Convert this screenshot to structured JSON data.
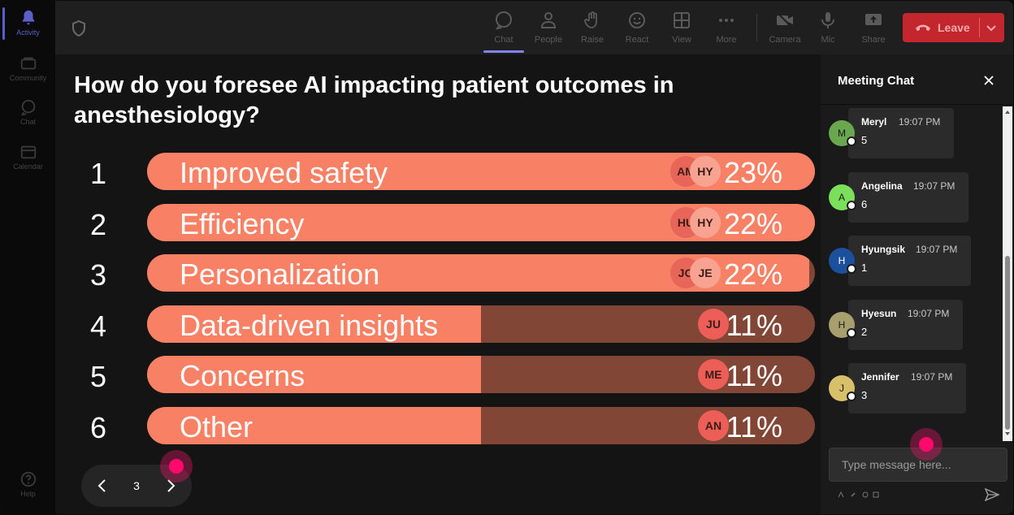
{
  "rail": {
    "items": [
      {
        "label": "Activity",
        "icon": "bell-icon"
      },
      {
        "label": "Community",
        "icon": "community-icon"
      },
      {
        "label": "Chat",
        "icon": "chat-icon"
      },
      {
        "label": "Calendar",
        "icon": "calendar-icon"
      }
    ],
    "help_label": "Help"
  },
  "toolbar": {
    "chat": "Chat",
    "people": "People",
    "raise": "Raise",
    "react": "React",
    "view": "View",
    "more": "More",
    "camera": "Camera",
    "mic": "Mic",
    "share": "Share",
    "leave": "Leave"
  },
  "poll": {
    "question": "How do you foresee AI impacting patient outcomes in anesthesiology?",
    "options": [
      {
        "num": "1",
        "label": "Improved safety",
        "pct": "23%",
        "fill": 1.0,
        "avatars": [
          "AM",
          "HY"
        ]
      },
      {
        "num": "2",
        "label": "Efficiency",
        "pct": "22%",
        "fill": 1.0,
        "avatars": [
          "HU",
          "HY"
        ]
      },
      {
        "num": "3",
        "label": "Personalization",
        "pct": "22%",
        "fill": 0.992,
        "avatars": [
          "JO",
          "JE"
        ]
      },
      {
        "num": "4",
        "label": "Data-driven insights",
        "pct": "11%",
        "fill": 0.5,
        "avatars": [
          "JU"
        ]
      },
      {
        "num": "5",
        "label": "Concerns",
        "pct": "11%",
        "fill": 0.5,
        "avatars": [
          "ME"
        ]
      },
      {
        "num": "6",
        "label": "Other",
        "pct": "11%",
        "fill": 0.5,
        "avatars": [
          "AN"
        ]
      }
    ],
    "page": "3"
  },
  "chat": {
    "title": "Meeting Chat",
    "messages": [
      {
        "initial": "M",
        "name": "Meryl",
        "time": "19:07 PM",
        "text": "5",
        "color": "#6aa84f"
      },
      {
        "initial": "A",
        "name": "Angelina",
        "time": "19:07 PM",
        "text": "6",
        "color": "#7bdf5b"
      },
      {
        "initial": "H",
        "name": "Hyungsik",
        "time": "19:07 PM",
        "text": "1",
        "color": "#1c4f9c"
      },
      {
        "initial": "H",
        "name": "Hyesun",
        "time": "19:07 PM",
        "text": "2",
        "color": "#a89f6e"
      },
      {
        "initial": "J",
        "name": "Jennifer",
        "time": "19:07 PM",
        "text": "3",
        "color": "#d8c06a"
      }
    ],
    "input_placeholder": "Type message here..."
  }
}
